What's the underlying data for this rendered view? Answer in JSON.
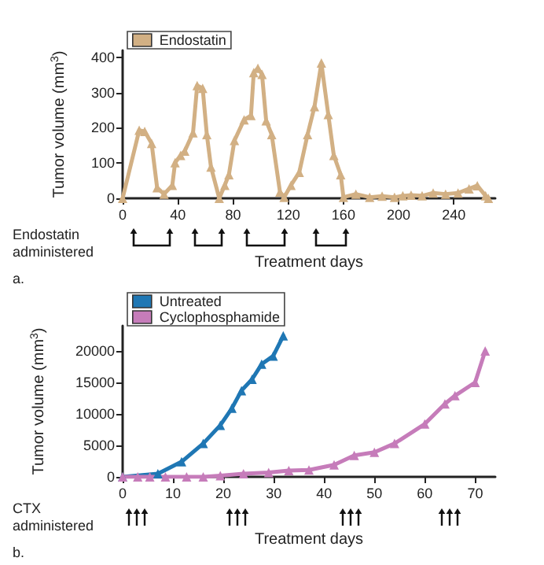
{
  "chart_data": [
    {
      "type": "line",
      "xlabel": "Treatment days",
      "ylabel": "Tumor volume (mm$^{3}$)",
      "annotations": [
        "Endostatin administered",
        "a."
      ],
      "xlim": [
        0,
        270
      ],
      "xticks": [
        0,
        40,
        80,
        120,
        160,
        200,
        240
      ],
      "ylim": [
        0,
        420
      ],
      "yticks": [
        0,
        100,
        200,
        300,
        400
      ],
      "series": [
        {
          "name": "Endostatin",
          "color": "#d2b084",
          "x": [
            0,
            12,
            16,
            21,
            25,
            30,
            36,
            38,
            42,
            45,
            51,
            54,
            58,
            61,
            64,
            70,
            74,
            77,
            81,
            88,
            93,
            95,
            98,
            101,
            104,
            108,
            114,
            117,
            122,
            128,
            134,
            139,
            144,
            149,
            153,
            158,
            160,
            169,
            179,
            188,
            197,
            203,
            209,
            217,
            225,
            234,
            243,
            251,
            257,
            263,
            265
          ],
          "values": [
            0,
            193,
            190,
            156,
            30,
            12,
            37,
            101,
            122,
            134,
            186,
            320,
            312,
            181,
            89,
            0,
            37,
            67,
            164,
            223,
            235,
            357,
            369,
            352,
            220,
            181,
            18,
            3,
            37,
            74,
            181,
            260,
            384,
            238,
            122,
            67,
            3,
            12,
            3,
            6,
            3,
            7,
            9,
            7,
            15,
            12,
            15,
            27,
            36,
            7,
            0
          ]
        }
      ],
      "marker": "triangle",
      "legend": "top left",
      "grid": false
    },
    {
      "type": "line",
      "xlabel": "Treatment days",
      "ylabel": "Tumor volume (mm$^{3}$)",
      "annotations": [
        "CTX administered",
        "b."
      ],
      "xlim": [
        0,
        74
      ],
      "xticks": [
        0,
        10,
        20,
        30,
        40,
        50,
        60,
        70
      ],
      "ylim": [
        0,
        24000
      ],
      "yticks": [
        0,
        5000,
        10000,
        15000,
        20000
      ],
      "series": [
        {
          "name": "Untreated",
          "color": "#1f77b4",
          "x": [
            0,
            7,
            11.7,
            16,
            19.4,
            21.7,
            23.6,
            25.7,
            27.6,
            29.9,
            31.9
          ],
          "values": [
            0,
            500,
            2400,
            5300,
            8200,
            10900,
            13700,
            15500,
            17900,
            19200,
            22400
          ]
        },
        {
          "name": "Cyclophosphamide",
          "color": "#c67cba",
          "x": [
            0,
            3,
            5.4,
            8.5,
            12.7,
            16,
            19.4,
            24,
            29,
            33,
            37,
            42,
            46,
            50,
            54,
            60,
            64,
            66,
            70,
            72
          ],
          "values": [
            0,
            0,
            0,
            0,
            0,
            0,
            200,
            500,
            700,
            1000,
            1100,
            1900,
            3400,
            3900,
            5300,
            8400,
            11600,
            12900,
            15000,
            20000
          ]
        }
      ],
      "marker": "triangle",
      "legend": "top left",
      "grid": false
    }
  ]
}
